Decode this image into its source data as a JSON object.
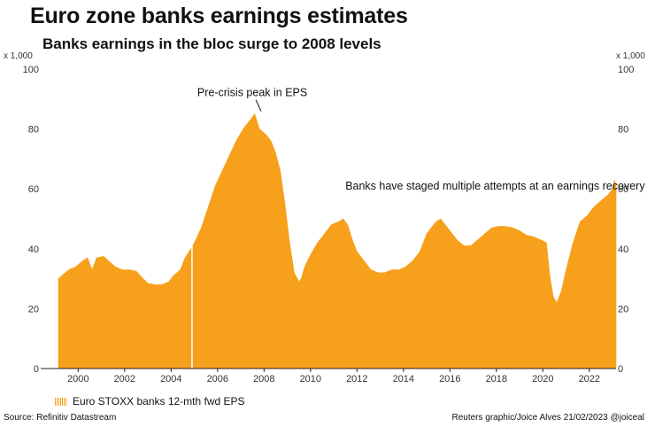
{
  "header": {
    "title": "Euro zone banks earnings estimates",
    "subtitle": "Banks earnings in the bloc surge to 2008 levels"
  },
  "axis": {
    "unit_left": "x 1,000",
    "unit_right": "x 1,000"
  },
  "legend": {
    "label": "Euro STOXX banks 12-mth fwd EPS"
  },
  "footer": {
    "source": "Source: Refinitiv Datastream",
    "credit": "Reuters graphic/Joice Alves 21/02/2023 @joiceal"
  },
  "colors": {
    "fill": "#f7a01c",
    "axis": "#222222"
  },
  "chart_data": {
    "type": "area",
    "title": "Euro zone banks earnings estimates",
    "subtitle": "Banks earnings in the bloc surge to 2008 levels",
    "xlabel": "",
    "ylabel": "x 1,000",
    "xlim": [
      1999.15,
      2023.15
    ],
    "ylim": [
      0,
      100
    ],
    "y_ticks": [
      0,
      20,
      40,
      60,
      80,
      100
    ],
    "x_ticks": [
      2000,
      2002,
      2004,
      2006,
      2008,
      2010,
      2012,
      2014,
      2016,
      2018,
      2020,
      2022
    ],
    "series": [
      {
        "name": "Euro STOXX banks 12-mth fwd EPS",
        "x": [
          1999.15,
          1999.3,
          1999.6,
          1999.9,
          2000.2,
          2000.4,
          2000.6,
          2000.8,
          2001.1,
          2001.3,
          2001.6,
          2001.9,
          2002.2,
          2002.5,
          2002.8,
          2003.0,
          2003.3,
          2003.6,
          2003.9,
          2004.1,
          2004.4,
          2004.6,
          2004.85,
          2005.0,
          2005.3,
          2005.6,
          2005.9,
          2006.2,
          2006.5,
          2006.8,
          2007.1,
          2007.4,
          2007.6,
          2007.8,
          2007.95,
          2008.1,
          2008.3,
          2008.5,
          2008.7,
          2008.9,
          2009.1,
          2009.3,
          2009.5,
          2009.6,
          2009.75,
          2010.0,
          2010.3,
          2010.6,
          2010.9,
          2011.2,
          2011.4,
          2011.6,
          2011.8,
          2012.0,
          2012.3,
          2012.6,
          2012.9,
          2013.2,
          2013.5,
          2013.8,
          2014.1,
          2014.4,
          2014.7,
          2015.0,
          2015.2,
          2015.4,
          2015.6,
          2015.8,
          2016.0,
          2016.3,
          2016.6,
          2016.9,
          2017.2,
          2017.5,
          2017.8,
          2018.1,
          2018.4,
          2018.7,
          2019.0,
          2019.3,
          2019.6,
          2019.9,
          2020.15,
          2020.3,
          2020.45,
          2020.6,
          2020.8,
          2021.0,
          2021.3,
          2021.6,
          2021.9,
          2022.2,
          2022.5,
          2022.8,
          2023.0,
          2023.08,
          2023.15
        ],
        "values": [
          30,
          31,
          33,
          34,
          36,
          37,
          33,
          37,
          37.5,
          36,
          34,
          33,
          33,
          32.5,
          30,
          28.5,
          28,
          28,
          29,
          31,
          33,
          37,
          40,
          42,
          47,
          54,
          61,
          66,
          71,
          76,
          80,
          83,
          85,
          80,
          79,
          78,
          76,
          72,
          66,
          55,
          42,
          32,
          29,
          30,
          34,
          38,
          42,
          45,
          48,
          49,
          50,
          48,
          43,
          39,
          36,
          33,
          32,
          32,
          33,
          33,
          34,
          36,
          39,
          45,
          47,
          49,
          50,
          48,
          46,
          43,
          41,
          41,
          43,
          45,
          47,
          47.5,
          47.5,
          47,
          46,
          44.5,
          44,
          43,
          42,
          31,
          24,
          22,
          26,
          33,
          42,
          49,
          51,
          54,
          56,
          58,
          60,
          63,
          61
        ]
      }
    ],
    "annotations": [
      {
        "text": "Pre-crisis peak in EPS",
        "x": 2007.8,
        "y": 85
      },
      {
        "text": "Banks have staged multiple attempts at an earnings recovery",
        "x": 2011.5,
        "y": 61
      }
    ]
  }
}
